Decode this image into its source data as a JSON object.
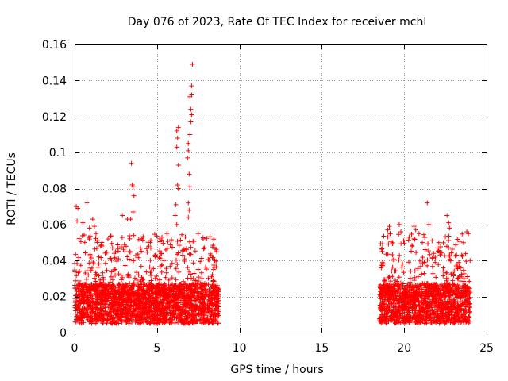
{
  "chart_data": {
    "type": "scatter",
    "title": "Day 076 of 2023, Rate Of TEC Index for receiver mchl",
    "xlabel": "GPS time / hours",
    "ylabel": "ROTI / TECUs",
    "xlim": [
      0,
      25
    ],
    "ylim": [
      0,
      0.16
    ],
    "xticks": [
      0,
      5,
      10,
      15,
      20,
      25
    ],
    "xtick_labels": [
      "0",
      "5",
      "10",
      "15",
      "20",
      "25"
    ],
    "yticks": [
      0,
      0.02,
      0.04,
      0.06,
      0.08,
      0.1,
      0.12,
      0.14,
      0.16
    ],
    "ytick_labels": [
      "0",
      "0.02",
      "0.04",
      "0.06",
      "0.08",
      "0.1",
      "0.12",
      "0.14",
      "0.16"
    ],
    "grid": true,
    "marker": "plus",
    "marker_color": "#ff0000",
    "series": [
      {
        "name": "ROTI",
        "segments": [
          {
            "x_start": 0.0,
            "x_end": 8.75,
            "typical_min": 0.005,
            "typical_max": 0.045
          },
          {
            "x_start": 18.5,
            "x_end": 24.0,
            "typical_min": 0.005,
            "typical_max": 0.045
          }
        ],
        "outliers": [
          {
            "x": 0.1,
            "y": 0.07
          },
          {
            "x": 0.2,
            "y": 0.069
          },
          {
            "x": 0.15,
            "y": 0.062
          },
          {
            "x": 0.5,
            "y": 0.061
          },
          {
            "x": 0.75,
            "y": 0.072
          },
          {
            "x": 0.9,
            "y": 0.058
          },
          {
            "x": 1.1,
            "y": 0.063
          },
          {
            "x": 1.2,
            "y": 0.059
          },
          {
            "x": 1.3,
            "y": 0.055
          },
          {
            "x": 1.4,
            "y": 0.051
          },
          {
            "x": 2.3,
            "y": 0.047
          },
          {
            "x": 2.4,
            "y": 0.044
          },
          {
            "x": 2.9,
            "y": 0.065
          },
          {
            "x": 3.2,
            "y": 0.063
          },
          {
            "x": 3.4,
            "y": 0.063
          },
          {
            "x": 3.45,
            "y": 0.094
          },
          {
            "x": 3.5,
            "y": 0.082
          },
          {
            "x": 3.55,
            "y": 0.081
          },
          {
            "x": 3.6,
            "y": 0.076
          },
          {
            "x": 3.55,
            "y": 0.067
          },
          {
            "x": 4.0,
            "y": 0.047
          },
          {
            "x": 4.6,
            "y": 0.05
          },
          {
            "x": 5.3,
            "y": 0.053
          },
          {
            "x": 5.6,
            "y": 0.055
          },
          {
            "x": 6.1,
            "y": 0.065
          },
          {
            "x": 6.2,
            "y": 0.06
          },
          {
            "x": 6.15,
            "y": 0.071
          },
          {
            "x": 6.25,
            "y": 0.082
          },
          {
            "x": 6.3,
            "y": 0.08
          },
          {
            "x": 6.3,
            "y": 0.093
          },
          {
            "x": 6.2,
            "y": 0.103
          },
          {
            "x": 6.25,
            "y": 0.108
          },
          {
            "x": 6.2,
            "y": 0.112
          },
          {
            "x": 6.3,
            "y": 0.114
          },
          {
            "x": 6.9,
            "y": 0.064
          },
          {
            "x": 6.95,
            "y": 0.068
          },
          {
            "x": 6.9,
            "y": 0.072
          },
          {
            "x": 7.0,
            "y": 0.081
          },
          {
            "x": 6.95,
            "y": 0.088
          },
          {
            "x": 6.85,
            "y": 0.097
          },
          {
            "x": 6.9,
            "y": 0.101
          },
          {
            "x": 6.9,
            "y": 0.105
          },
          {
            "x": 7.0,
            "y": 0.11
          },
          {
            "x": 7.05,
            "y": 0.117
          },
          {
            "x": 7.1,
            "y": 0.121
          },
          {
            "x": 7.05,
            "y": 0.124
          },
          {
            "x": 7.0,
            "y": 0.131
          },
          {
            "x": 7.1,
            "y": 0.132
          },
          {
            "x": 7.1,
            "y": 0.137
          },
          {
            "x": 7.15,
            "y": 0.149
          },
          {
            "x": 7.5,
            "y": 0.055
          },
          {
            "x": 7.8,
            "y": 0.052
          },
          {
            "x": 8.5,
            "y": 0.04
          },
          {
            "x": 19.0,
            "y": 0.057
          },
          {
            "x": 19.1,
            "y": 0.059
          },
          {
            "x": 19.15,
            "y": 0.055
          },
          {
            "x": 19.3,
            "y": 0.05
          },
          {
            "x": 19.7,
            "y": 0.06
          },
          {
            "x": 19.8,
            "y": 0.056
          },
          {
            "x": 20.3,
            "y": 0.053
          },
          {
            "x": 20.6,
            "y": 0.059
          },
          {
            "x": 20.7,
            "y": 0.057
          },
          {
            "x": 20.9,
            "y": 0.055
          },
          {
            "x": 21.1,
            "y": 0.05
          },
          {
            "x": 21.4,
            "y": 0.072
          },
          {
            "x": 21.5,
            "y": 0.06
          },
          {
            "x": 22.1,
            "y": 0.05
          },
          {
            "x": 22.6,
            "y": 0.065
          },
          {
            "x": 22.7,
            "y": 0.061
          },
          {
            "x": 22.75,
            "y": 0.058
          },
          {
            "x": 23.8,
            "y": 0.056
          },
          {
            "x": 23.9,
            "y": 0.055
          }
        ]
      }
    ]
  }
}
